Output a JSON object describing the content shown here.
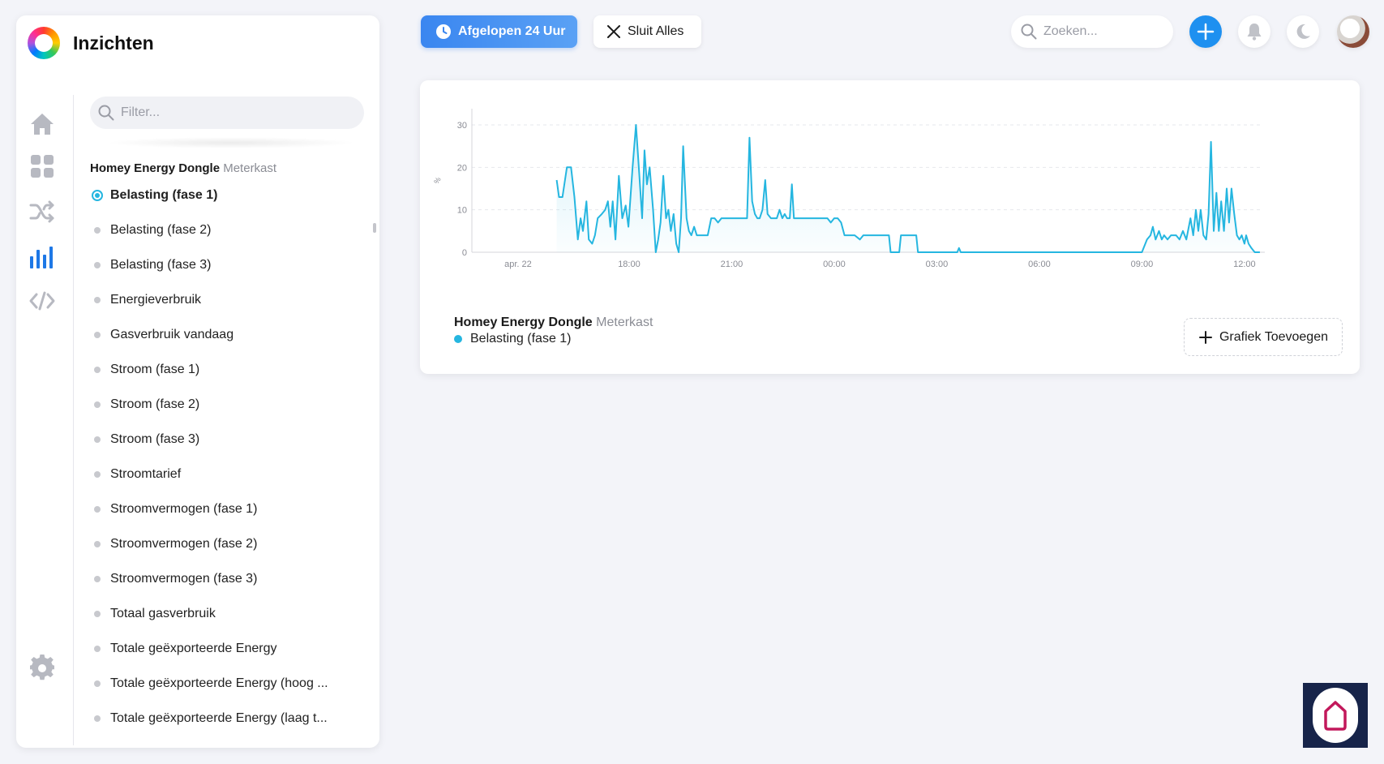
{
  "app": {
    "title": "Inzichten"
  },
  "sidebar": {
    "filter_placeholder": "Filter...",
    "group": {
      "device": "Homey Energy Dongle",
      "zone": "Meterkast"
    },
    "items": [
      {
        "label": "Belasting (fase 1)",
        "active": true
      },
      {
        "label": "Belasting (fase 2)"
      },
      {
        "label": "Belasting (fase 3)"
      },
      {
        "label": "Energieverbruik"
      },
      {
        "label": "Gasverbruik vandaag"
      },
      {
        "label": "Stroom (fase 1)"
      },
      {
        "label": "Stroom (fase 2)"
      },
      {
        "label": "Stroom (fase 3)"
      },
      {
        "label": "Stroomtarief"
      },
      {
        "label": "Stroomvermogen (fase 1)"
      },
      {
        "label": "Stroomvermogen (fase 2)"
      },
      {
        "label": "Stroomvermogen (fase 3)"
      },
      {
        "label": "Totaal gasverbruik"
      },
      {
        "label": "Totale geëxporteerde Energy"
      },
      {
        "label": "Totale geëxporteerde Energy (hoog ..."
      },
      {
        "label": "Totale geëxporteerde Energy (laag t..."
      }
    ],
    "rail_icons": [
      "home-icon",
      "dashboard-icon",
      "flows-icon",
      "insights-icon",
      "code-icon",
      "settings-icon"
    ]
  },
  "toolbar": {
    "time_range_label": "Afgelopen 24 Uur",
    "close_all_label": "Sluit Alles",
    "search_placeholder": "Zoeken..."
  },
  "card": {
    "legend_device": "Homey Energy Dongle",
    "legend_zone": "Meterkast",
    "legend_series": "Belasting (fase 1)",
    "add_graph_label": "Grafiek Toevoegen"
  },
  "colors": {
    "accent": "#25b6e0",
    "primary": "#3a86f0",
    "add": "#1e90f0"
  },
  "chart_data": {
    "type": "area",
    "ylabel": "%",
    "ylim": [
      0,
      30
    ],
    "yticks": [
      0,
      10,
      20,
      30
    ],
    "xtick_labels": [
      "apr. 22",
      "18:00",
      "21:00",
      "00:00",
      "03:00",
      "06:00",
      "09:00",
      "12:00"
    ],
    "xtick_hours": [
      -0.25,
      3,
      6,
      9,
      12,
      15,
      18,
      21
    ],
    "x_unit": "hours since 15:00 on apr. 22 (display only)",
    "grid": true,
    "series": [
      {
        "name": "Belasting (fase 1)",
        "points": [
          [
            0.88,
            17
          ],
          [
            0.95,
            13
          ],
          [
            1.05,
            13
          ],
          [
            1.18,
            20
          ],
          [
            1.3,
            20
          ],
          [
            1.4,
            13
          ],
          [
            1.5,
            3
          ],
          [
            1.58,
            8
          ],
          [
            1.65,
            5
          ],
          [
            1.75,
            12
          ],
          [
            1.82,
            3
          ],
          [
            1.92,
            2
          ],
          [
            2.0,
            4
          ],
          [
            2.08,
            8
          ],
          [
            2.2,
            9
          ],
          [
            2.3,
            10
          ],
          [
            2.38,
            12
          ],
          [
            2.45,
            6
          ],
          [
            2.52,
            12
          ],
          [
            2.6,
            3
          ],
          [
            2.7,
            18
          ],
          [
            2.8,
            8
          ],
          [
            2.9,
            11
          ],
          [
            2.98,
            6
          ],
          [
            3.1,
            20
          ],
          [
            3.2,
            30
          ],
          [
            3.3,
            18
          ],
          [
            3.38,
            8
          ],
          [
            3.45,
            24
          ],
          [
            3.52,
            16
          ],
          [
            3.6,
            20
          ],
          [
            3.7,
            10
          ],
          [
            3.78,
            0
          ],
          [
            3.85,
            3
          ],
          [
            3.92,
            7
          ],
          [
            4.0,
            18
          ],
          [
            4.08,
            8
          ],
          [
            4.15,
            10
          ],
          [
            4.22,
            5
          ],
          [
            4.3,
            9
          ],
          [
            4.38,
            2
          ],
          [
            4.45,
            0
          ],
          [
            4.52,
            8
          ],
          [
            4.58,
            25
          ],
          [
            4.68,
            8
          ],
          [
            4.75,
            5
          ],
          [
            4.82,
            4
          ],
          [
            4.9,
            6
          ],
          [
            4.98,
            4
          ],
          [
            5.3,
            4
          ],
          [
            5.4,
            8
          ],
          [
            5.5,
            8
          ],
          [
            5.6,
            7
          ],
          [
            5.7,
            8
          ],
          [
            5.8,
            8
          ],
          [
            6.0,
            8
          ],
          [
            6.2,
            8
          ],
          [
            6.4,
            8
          ],
          [
            6.45,
            8
          ],
          [
            6.52,
            27
          ],
          [
            6.6,
            12
          ],
          [
            6.68,
            9
          ],
          [
            6.75,
            8
          ],
          [
            6.82,
            8
          ],
          [
            6.9,
            10
          ],
          [
            6.98,
            17
          ],
          [
            7.05,
            9
          ],
          [
            7.15,
            8
          ],
          [
            7.25,
            8
          ],
          [
            7.32,
            8
          ],
          [
            7.4,
            10
          ],
          [
            7.48,
            8
          ],
          [
            7.55,
            9
          ],
          [
            7.62,
            8
          ],
          [
            7.7,
            8
          ],
          [
            7.76,
            16
          ],
          [
            7.82,
            8
          ],
          [
            8.0,
            8
          ],
          [
            8.4,
            8
          ],
          [
            8.8,
            8
          ],
          [
            8.9,
            7
          ],
          [
            9.0,
            8
          ],
          [
            9.1,
            8
          ],
          [
            9.2,
            7
          ],
          [
            9.3,
            4
          ],
          [
            9.6,
            4
          ],
          [
            9.75,
            3
          ],
          [
            9.85,
            4
          ],
          [
            10.6,
            4
          ],
          [
            10.65,
            0
          ],
          [
            10.9,
            0
          ],
          [
            10.95,
            4
          ],
          [
            11.4,
            4
          ],
          [
            11.45,
            0
          ],
          [
            12.6,
            0
          ],
          [
            12.65,
            1
          ],
          [
            12.7,
            0
          ],
          [
            18.0,
            0
          ],
          [
            18.15,
            3
          ],
          [
            18.25,
            4
          ],
          [
            18.32,
            6
          ],
          [
            18.4,
            3
          ],
          [
            18.5,
            5
          ],
          [
            18.58,
            3
          ],
          [
            18.65,
            4
          ],
          [
            18.75,
            3
          ],
          [
            18.85,
            4
          ],
          [
            19.0,
            4
          ],
          [
            19.1,
            3
          ],
          [
            19.2,
            5
          ],
          [
            19.3,
            3
          ],
          [
            19.42,
            8
          ],
          [
            19.5,
            4
          ],
          [
            19.58,
            10
          ],
          [
            19.65,
            5
          ],
          [
            19.72,
            10
          ],
          [
            19.8,
            4
          ],
          [
            19.88,
            3
          ],
          [
            19.95,
            9
          ],
          [
            20.02,
            26
          ],
          [
            20.1,
            5
          ],
          [
            20.18,
            14
          ],
          [
            20.25,
            5
          ],
          [
            20.32,
            12
          ],
          [
            20.4,
            5
          ],
          [
            20.48,
            15
          ],
          [
            20.55,
            7
          ],
          [
            20.62,
            15
          ],
          [
            20.7,
            9
          ],
          [
            20.78,
            4
          ],
          [
            20.85,
            3
          ],
          [
            20.92,
            4
          ],
          [
            21.0,
            2
          ],
          [
            21.05,
            4
          ],
          [
            21.12,
            2
          ],
          [
            21.2,
            1
          ],
          [
            21.3,
            0
          ],
          [
            21.45,
            0
          ]
        ]
      }
    ]
  }
}
